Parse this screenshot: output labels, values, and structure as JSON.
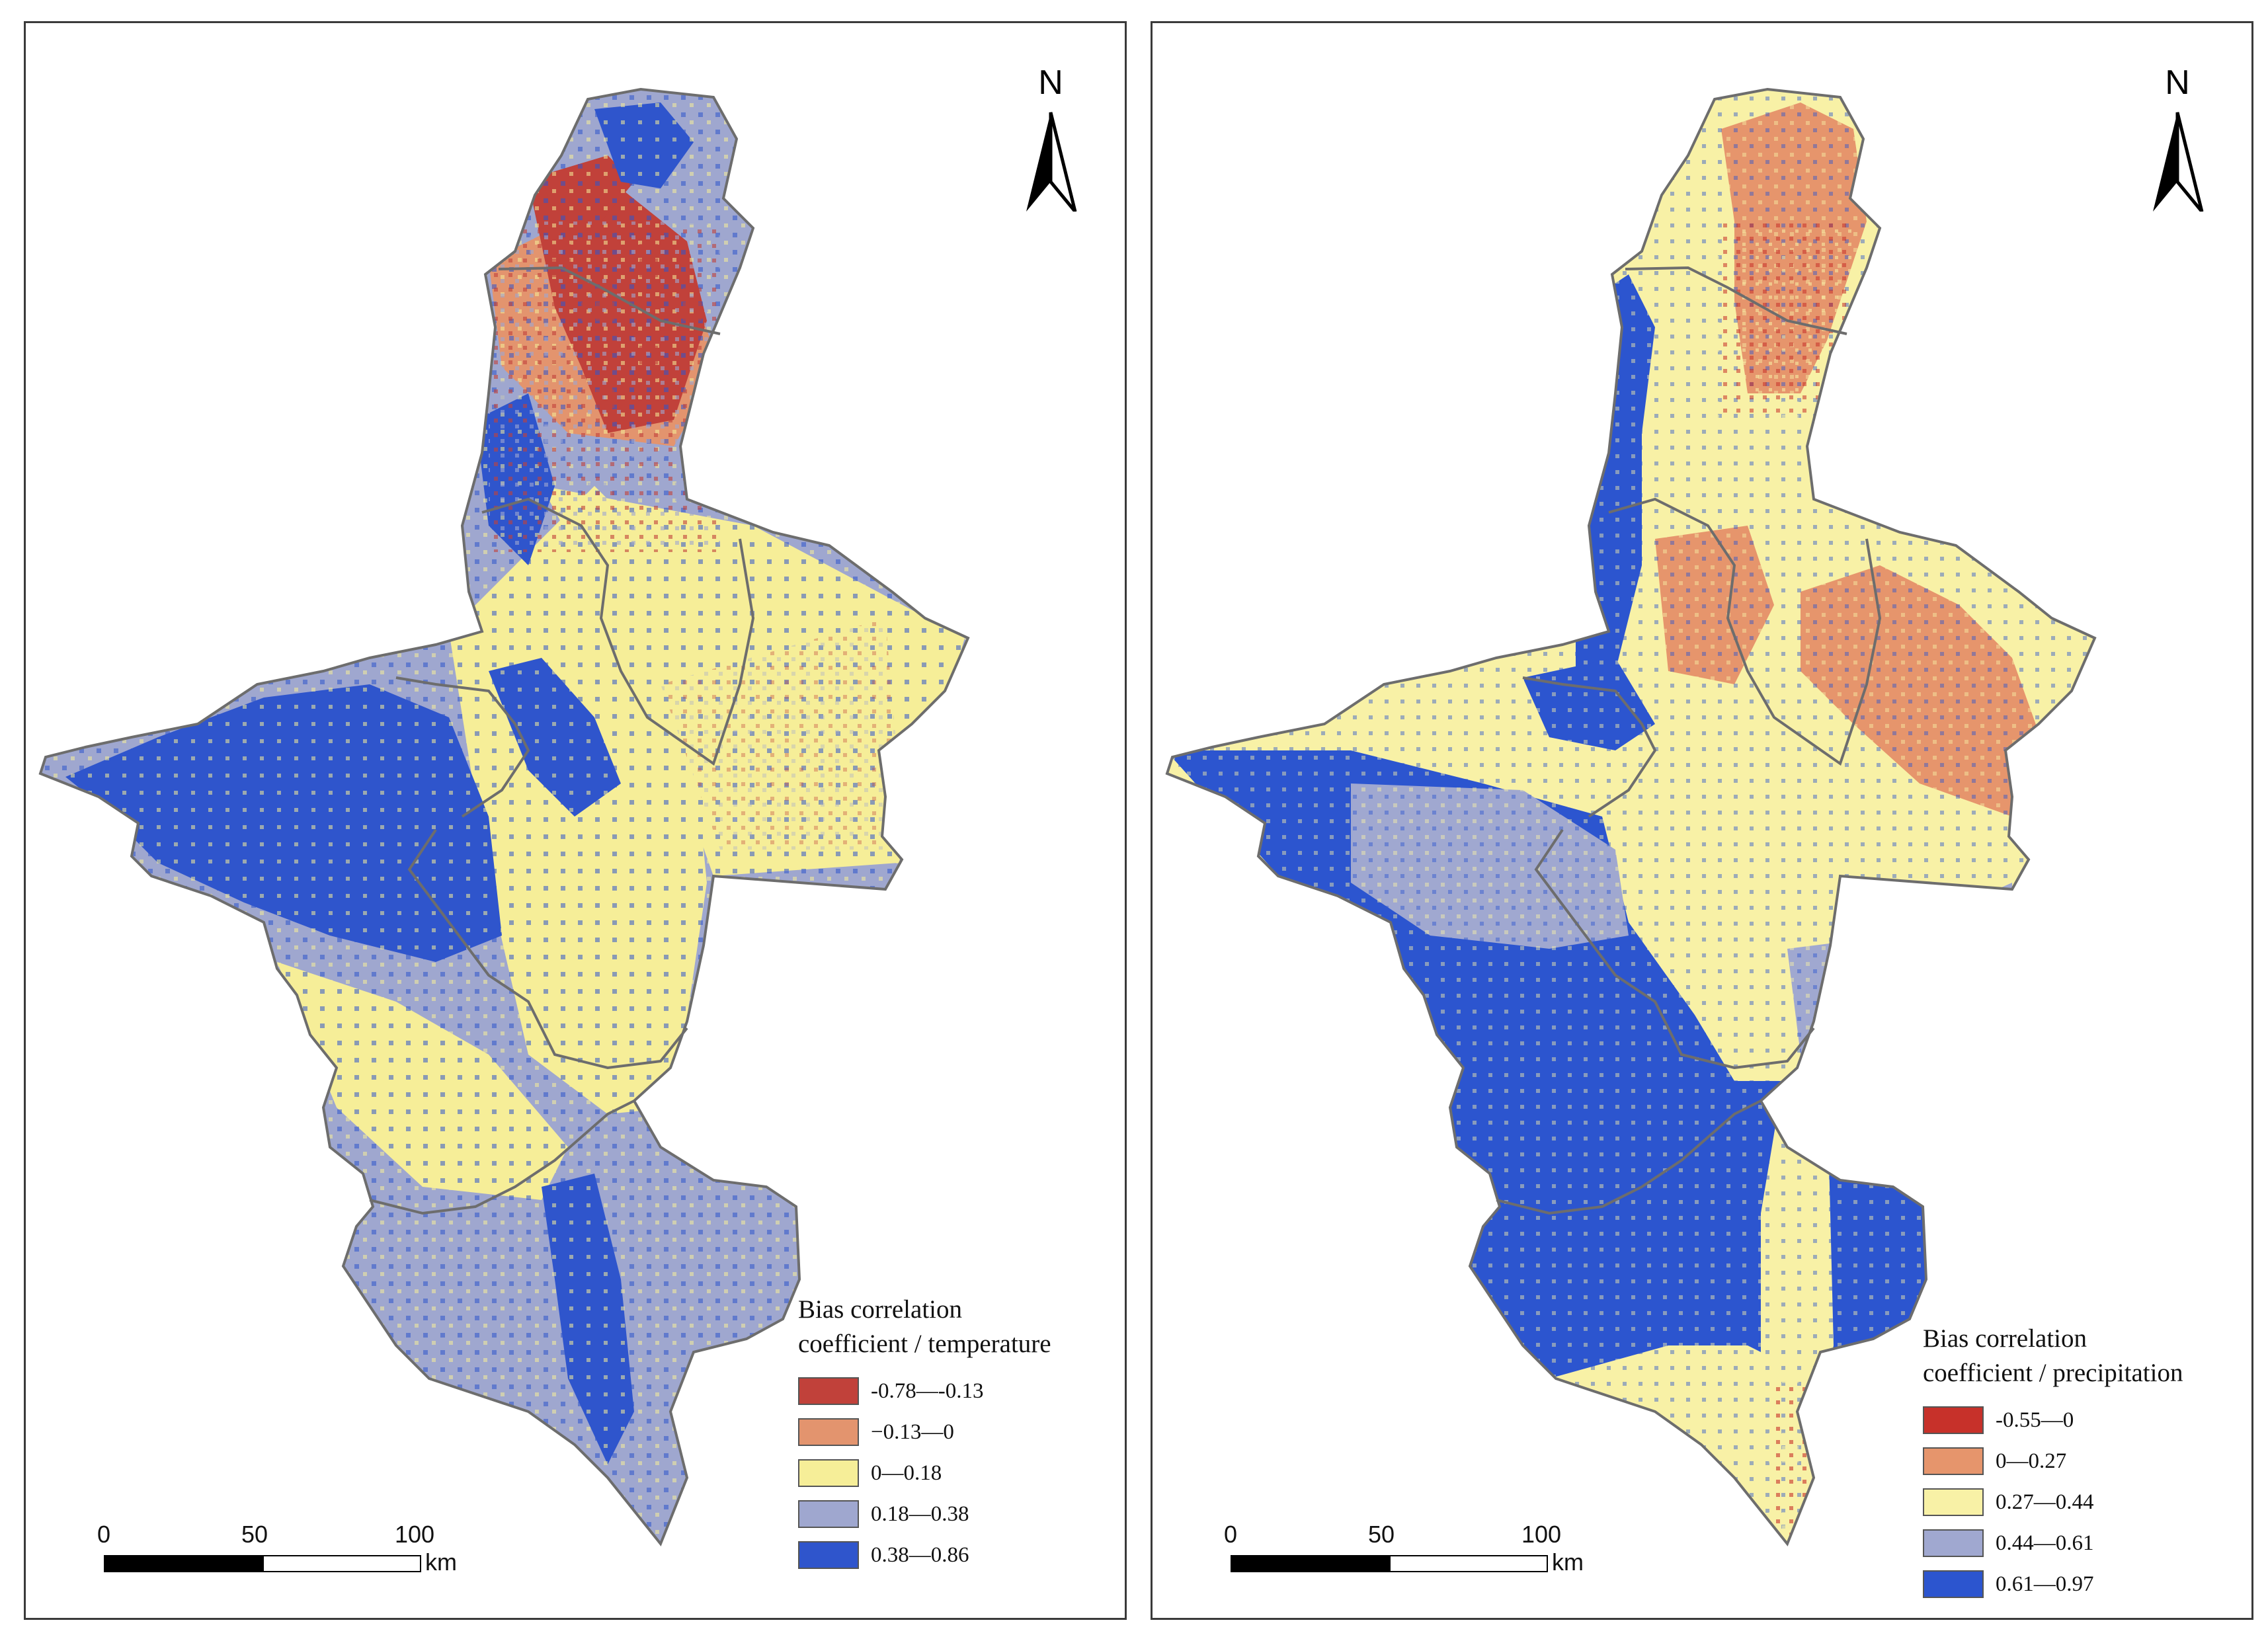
{
  "colors": {
    "class1_temp": "#c1413a",
    "class2_temp": "#e3946e",
    "class3_temp": "#f6ee98",
    "class4_temp": "#9fa7cf",
    "class5_temp": "#2f55cc",
    "class1_prec": "#c7312a",
    "class2_prec": "#e6956c",
    "class3_prec": "#f8f1a6",
    "class4_prec": "#a0a8d0",
    "class5_prec": "#2c55cf",
    "boundary": "#6d6d6d"
  },
  "maps": [
    {
      "north_label": "N",
      "legend": {
        "title_line1": "Bias correlation",
        "title_line2": "coefficient / temperature",
        "items": [
          {
            "label": "-0.78—-0.13",
            "color": "#c1413a"
          },
          {
            "label": "−0.13—0",
            "color": "#e3946e"
          },
          {
            "label": "0—0.18",
            "color": "#f6ee98"
          },
          {
            "label": "0.18—0.38",
            "color": "#9fa7cf"
          },
          {
            "label": "0.38—0.86",
            "color": "#2f55cc"
          }
        ]
      },
      "scale_bar": {
        "ticks": [
          "0",
          "50",
          "100"
        ],
        "unit": "km"
      }
    },
    {
      "north_label": "N",
      "legend": {
        "title_line1": "Bias correlation",
        "title_line2": "coefficient / precipitation",
        "items": [
          {
            "label": "-0.55—0",
            "color": "#c7312a"
          },
          {
            "label": "0—0.27",
            "color": "#e6956c"
          },
          {
            "label": "0.27—0.44",
            "color": "#f8f1a6"
          },
          {
            "label": "0.44—0.61",
            "color": "#a0a8d0"
          },
          {
            "label": "0.61—0.97",
            "color": "#2c55cf"
          }
        ]
      },
      "scale_bar": {
        "ticks": [
          "0",
          "50",
          "100"
        ],
        "unit": "km"
      }
    }
  ]
}
